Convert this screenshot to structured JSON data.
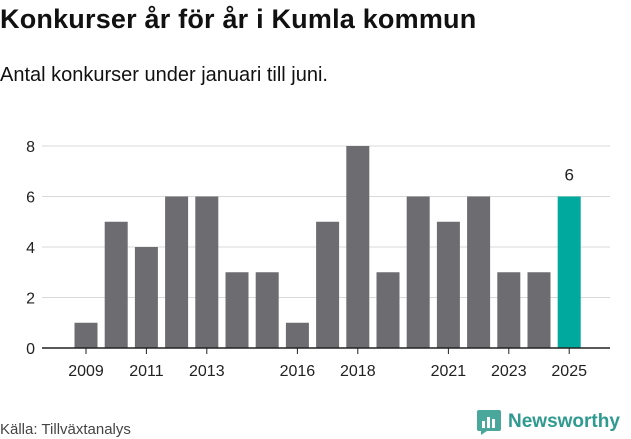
{
  "title": "Konkurser år för år i Kumla kommun",
  "subtitle": "Antal konkurser under januari till juni.",
  "source": "Källa: Tillväxtanalys",
  "brand": "Newsworthy",
  "colors": {
    "bar": "#6d6c71",
    "highlight": "#00a99d",
    "grid": "#d9d9d9",
    "axis": "#222222",
    "brand": "#2f9a8f"
  },
  "icons": {
    "brand_logo": "bar-chart-icon"
  },
  "chart_data": {
    "type": "bar",
    "categories": [
      "2009",
      "2010",
      "2011",
      "2012",
      "2013",
      "2014",
      "2015",
      "2016",
      "2017",
      "2018",
      "2019",
      "2020",
      "2021",
      "2022",
      "2023",
      "2024",
      "2025"
    ],
    "values": [
      1,
      5,
      4,
      6,
      6,
      3,
      3,
      1,
      5,
      8,
      3,
      6,
      5,
      6,
      3,
      3,
      6
    ],
    "xtick_labels": [
      "2009",
      "2011",
      "2013",
      "2016",
      "2018",
      "2021",
      "2023",
      "2025"
    ],
    "yticks": [
      0,
      2,
      4,
      6,
      8
    ],
    "ylim": [
      0,
      8
    ],
    "highlight_category": "2025",
    "data_labels": [
      {
        "category": "2025",
        "text": "6"
      }
    ],
    "grid": "horizontal"
  }
}
